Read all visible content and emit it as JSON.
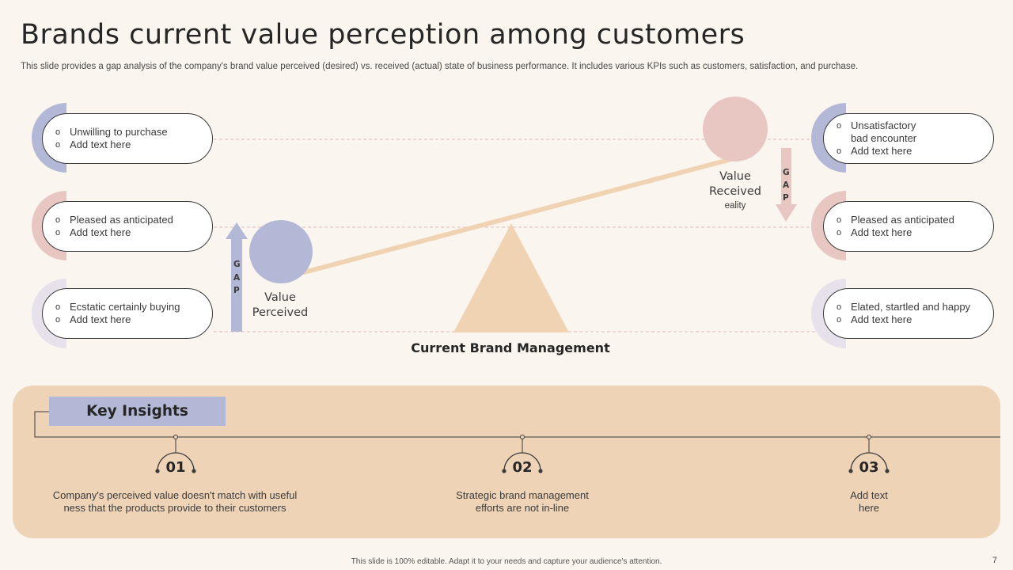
{
  "header": {
    "title": "Brands current value perception among customers",
    "subtitle": "This slide provides a gap analysis of the company's brand value perceived (desired) vs. received (actual) state of business performance. It includes various KPIs such as customers, satisfaction, and purchase."
  },
  "bullet_glyph": "o",
  "left_pills": [
    {
      "line1": "Unwilling to purchase",
      "line2": "Add text here"
    },
    {
      "line1": "Pleased as anticipated",
      "line2": "Add text here"
    },
    {
      "line1": "Ecstatic certainly buying",
      "line2": "Add text here"
    }
  ],
  "right_pills": [
    {
      "line1": "Unsatisfactory",
      "line1b": "bad encounter",
      "line2": "Add text here"
    },
    {
      "line1": "Pleased as anticipated",
      "line2": "Add text here"
    },
    {
      "line1": "Elated, startled and happy",
      "line2": "Add text here"
    }
  ],
  "diagram": {
    "value_perceived": "Value\nPerceived",
    "value_received": "Value\nReceived",
    "received_note": "eality",
    "gap_letters": [
      "G",
      "A",
      "P"
    ],
    "base_label": "Current Brand Management"
  },
  "insights": {
    "title": "Key Insights",
    "items": [
      {
        "num": "01",
        "text": "Company's perceived value doesn't match with useful ness that the products provide to their customers"
      },
      {
        "num": "02",
        "text": "Strategic brand management efforts are not in-line"
      },
      {
        "num": "03",
        "text": "Add text here"
      }
    ]
  },
  "footer": {
    "note": "This slide is 100% editable. Adapt it to your needs and capture your audience's attention.",
    "page": "7"
  },
  "colors": {
    "lavender": "#b3b8d6",
    "pink": "#e8c7c3",
    "pale": "#e6e1eb",
    "beam": "#f0d3b2",
    "panel": "#efd3b6"
  }
}
